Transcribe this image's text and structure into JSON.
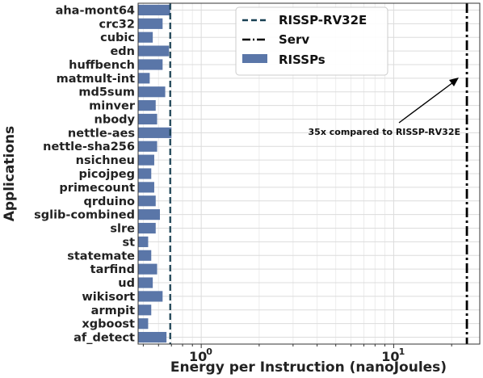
{
  "chart_data": {
    "type": "bar",
    "orientation": "horizontal",
    "title": "",
    "xlabel": "Energy per Instruction (nanoJoules)",
    "ylabel": "Applications",
    "x_scale": "log",
    "x_ticks": [
      {
        "value": 1,
        "label": "10",
        "exp": "0"
      },
      {
        "value": 10,
        "label": "10",
        "exp": "1"
      }
    ],
    "xlim": [
      0.47,
      28
    ],
    "grid": true,
    "legend_position": "top-center",
    "bar_color": "#5a76a8",
    "categories": [
      "aha-mont64",
      "crc32",
      "cubic",
      "edn",
      "huffbench",
      "matmult-int",
      "md5sum",
      "minver",
      "nbody",
      "nettle-aes",
      "nettle-sha256",
      "nsichneu",
      "picojpeg",
      "primecount",
      "qrduino",
      "sglib-combined",
      "slre",
      "st",
      "statemate",
      "tarfind",
      "ud",
      "wikisort",
      "armpit",
      "xgboost",
      "af_detect"
    ],
    "series": [
      {
        "name": "RISSPs",
        "values": [
          0.69,
          0.63,
          0.56,
          0.68,
          0.63,
          0.54,
          0.65,
          0.58,
          0.59,
          0.7,
          0.59,
          0.57,
          0.55,
          0.57,
          0.58,
          0.61,
          0.58,
          0.53,
          0.55,
          0.59,
          0.56,
          0.63,
          0.55,
          0.53,
          0.66
        ]
      }
    ],
    "reference_lines": [
      {
        "name": "RISSP-RV32E",
        "value": 0.69,
        "style": "dashed",
        "color": "#173f52"
      },
      {
        "name": "Serv",
        "value": 24,
        "style": "dashdot",
        "color": "#000000"
      }
    ],
    "annotation": {
      "text": "35x compared to RISSP-RV32E",
      "point_to": "Serv"
    }
  }
}
